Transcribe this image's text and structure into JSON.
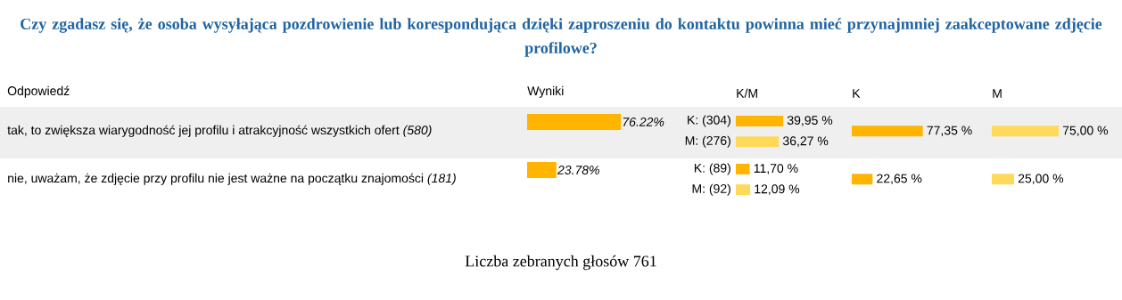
{
  "chart_data": [
    {
      "type": "bar",
      "orientation": "horizontal",
      "title": "Czy zgadasz się, że osoba wysyłająca pozdrowienie lub korespondująca dzięki zaproszeniu do kontaktu powinna mieć przynajmniej zaakceptowane zdjęcie profilowe?",
      "xlabel": "Wyniki",
      "ylabel": "Odpowiedź",
      "categories": [
        "tak, to zwiększa wiarygodność jej profilu i atrakcyjność wszystkich ofert *(580)*",
        "nie, uważam, że zdjęcie przy profilu nie jest ważne na początku znajomości *(181)*"
      ],
      "values": [
        76.22,
        23.78
      ],
      "value_labels": [
        "76.22%",
        "23.78%"
      ],
      "color": "#ffb400",
      "tick_labels": "y",
      "annotations": [
        "Liczba zebranych głosów 761"
      ]
    },
    {
      "type": "bar",
      "orientation": "horizontal",
      "xlabel": "K/M",
      "categories": [
        null,
        null
      ],
      "series": [
        {
          "color": "#ffb400",
          "values": [
            39.95,
            11.7
          ],
          "value_labels": [
            "39,95 %",
            "11,70 %"
          ]
        },
        {
          "color": "#ffd95a",
          "values": [
            36.27,
            12.09
          ],
          "value_labels": [
            "36,27 %",
            "12,09 %"
          ]
        }
      ],
      "annotations": [
        "K: (304)",
        "M: (276)",
        "K: (89)",
        "M: (92)"
      ],
      "tick_labels": false
    },
    {
      "type": "bar",
      "orientation": "horizontal",
      "xlabel": "K",
      "categories": [
        null,
        null
      ],
      "values": [
        77.35,
        22.65
      ],
      "value_labels": [
        "77,35 %",
        "22,65 %"
      ],
      "color": "#ffb400",
      "tick_labels": false
    },
    {
      "type": "bar",
      "orientation": "horizontal",
      "xlabel": "M",
      "categories": [
        null,
        null
      ],
      "values": [
        75.0,
        25.0
      ],
      "value_labels": [
        "75,00 %",
        "25,00 %"
      ],
      "color": "#ffd95a",
      "tick_labels": false
    }
  ]
}
